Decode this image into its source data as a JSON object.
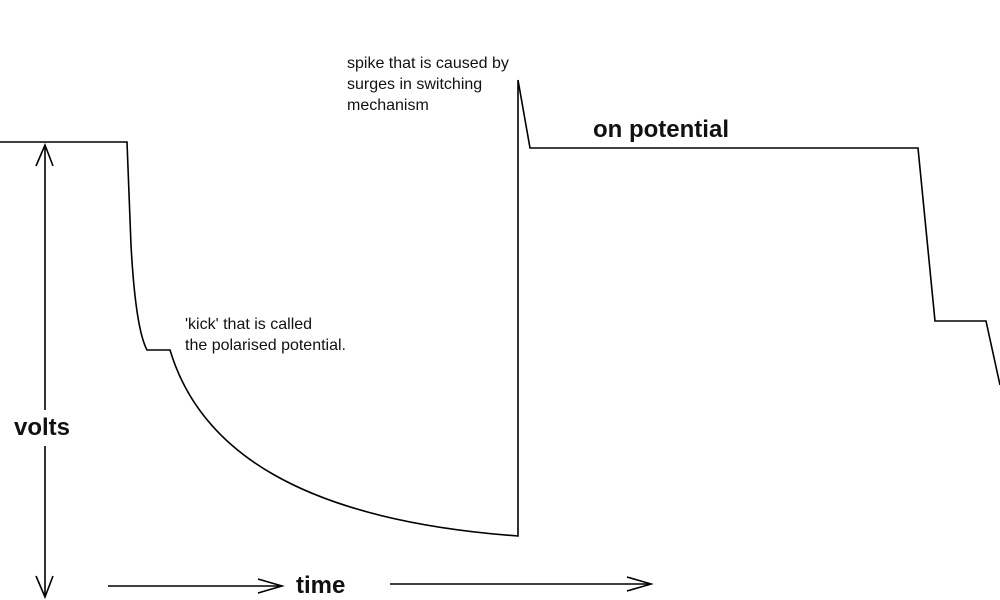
{
  "labels": {
    "volts": "volts",
    "time": "time",
    "on_potential": "on potential",
    "kick_note": "'kick' that is called\nthe polarised potential.",
    "spike_note": "spike that is caused by\nsurges in switching\nmechanism"
  },
  "colors": {
    "line": "#000000",
    "text": "#111111",
    "background": "#ffffff"
  }
}
